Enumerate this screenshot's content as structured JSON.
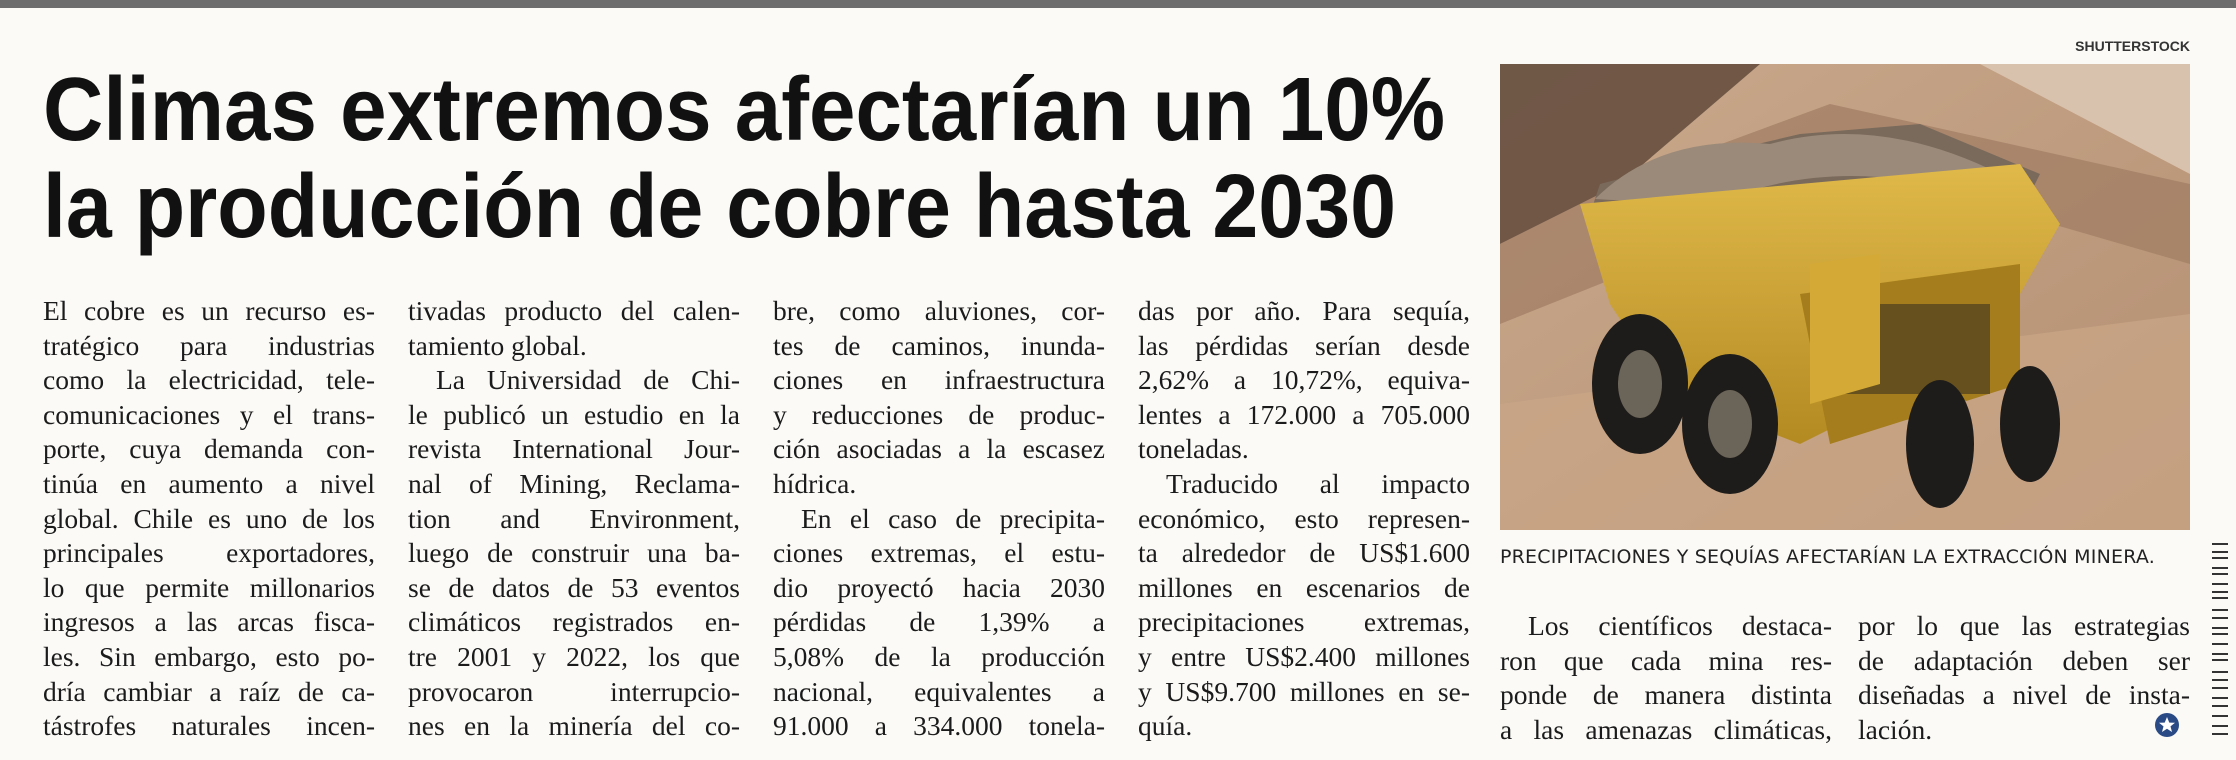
{
  "credit": "SHUTTERSTOCK",
  "headline": [
    "Climas extremos afectarían un 10%",
    "la producción de cobre hasta 2030"
  ],
  "caption": "PRECIPITACIONES Y SEQUÍAS AFECTARÍAN LA EXTRACCIÓN MINERA.",
  "columns": [
    {
      "paragraphs": [
        {
          "indent": false,
          "lines": [
            "El cobre es un recurso es-",
            "tratégico para industrias",
            "como la electricidad, tele-",
            "comunicaciones y el trans-",
            "porte, cuya demanda con-",
            "tinúa en aumento a nivel",
            "global. Chile es uno de los",
            "principales exportadores,",
            "lo que permite millonarios",
            "ingresos a las arcas fisca-",
            "les. Sin embargo, esto po-",
            "dría cambiar a raíz de ca-",
            "tástrofes naturales incen-"
          ]
        }
      ]
    },
    {
      "paragraphs": [
        {
          "indent": false,
          "lines": [
            "tivadas producto del calen-",
            "tamiento global."
          ]
        },
        {
          "indent": true,
          "lines": [
            "La Universidad de Chi-",
            "le publicó un estudio en la",
            "revista International Jour-",
            "nal of Mining, Reclama-",
            "tion and Environment,",
            "luego de construir una ba-",
            "se de datos de 53 eventos",
            "climáticos registrados en-",
            "tre 2001 y 2022, los que",
            "provocaron interrupcio-",
            "nes en la minería del co-"
          ]
        }
      ]
    },
    {
      "paragraphs": [
        {
          "indent": false,
          "lines": [
            "bre, como aluviones, cor-",
            "tes de caminos, inunda-",
            "ciones en infraestructura",
            "y reducciones de produc-",
            "ción asociadas a la escasez",
            "hídrica."
          ]
        },
        {
          "indent": true,
          "lines": [
            "En el caso de precipita-",
            "ciones extremas, el estu-",
            "dio proyectó hacia 2030",
            "pérdidas de 1,39% a",
            "5,08% de la producción",
            "nacional, equivalentes a",
            "91.000 a 334.000 tonela-"
          ]
        }
      ]
    },
    {
      "paragraphs": [
        {
          "indent": false,
          "lines": [
            "das por año. Para sequía,",
            "las pérdidas serían desde",
            "2,62% a 10,72%, equiva-",
            "lentes a 172.000 a 705.000",
            "toneladas."
          ]
        },
        {
          "indent": true,
          "lines": [
            "Traducido al impacto",
            "económico, esto represen-",
            "ta alrededor de US$1.600",
            "millones en escenarios de",
            "precipitaciones extremas,",
            "y entre US$2.400 millones",
            "y US$9.700 millones en se-",
            "quía."
          ]
        }
      ]
    },
    {
      "paragraphs": [
        {
          "indent": true,
          "lines": [
            "Los científicos destaca-",
            "ron que cada mina res-",
            "ponde de manera distinta",
            "a las amenazas climáticas,"
          ]
        }
      ]
    },
    {
      "paragraphs": [
        {
          "indent": false,
          "lines": [
            "por lo que las estrategias",
            "de adaptación deben ser",
            "diseñadas a nivel de insta-",
            "lación."
          ]
        }
      ]
    }
  ]
}
